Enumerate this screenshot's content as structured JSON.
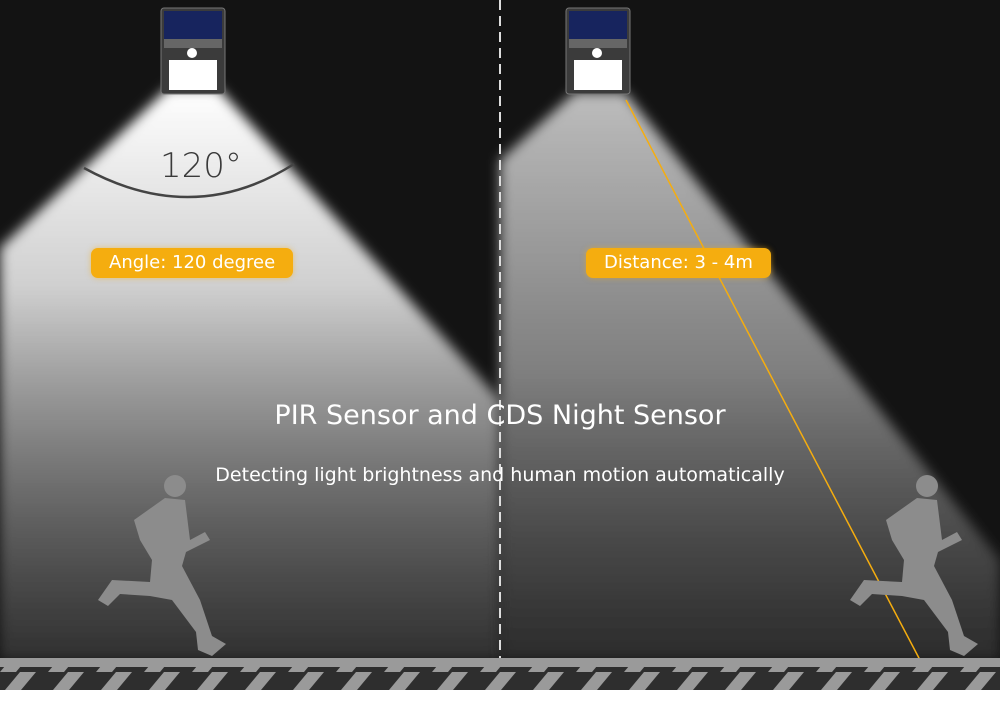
{
  "left_panel": {
    "angle_readout": "120°",
    "badge": "Angle: 120 degree"
  },
  "right_panel": {
    "badge": "Distance: 3 - 4m"
  },
  "headline": "PIR Sensor and CDS Night Sensor",
  "subheadline": "Detecting light brightness and human motion automatically",
  "colors": {
    "background": "#131313",
    "badge": "#f5ad0f",
    "beam": "#ffffff",
    "ground": "#9a9a9a",
    "distance_line": "#f5ad0f"
  },
  "icons": [
    "solar-wall-lamp-icon",
    "running-person-icon"
  ]
}
